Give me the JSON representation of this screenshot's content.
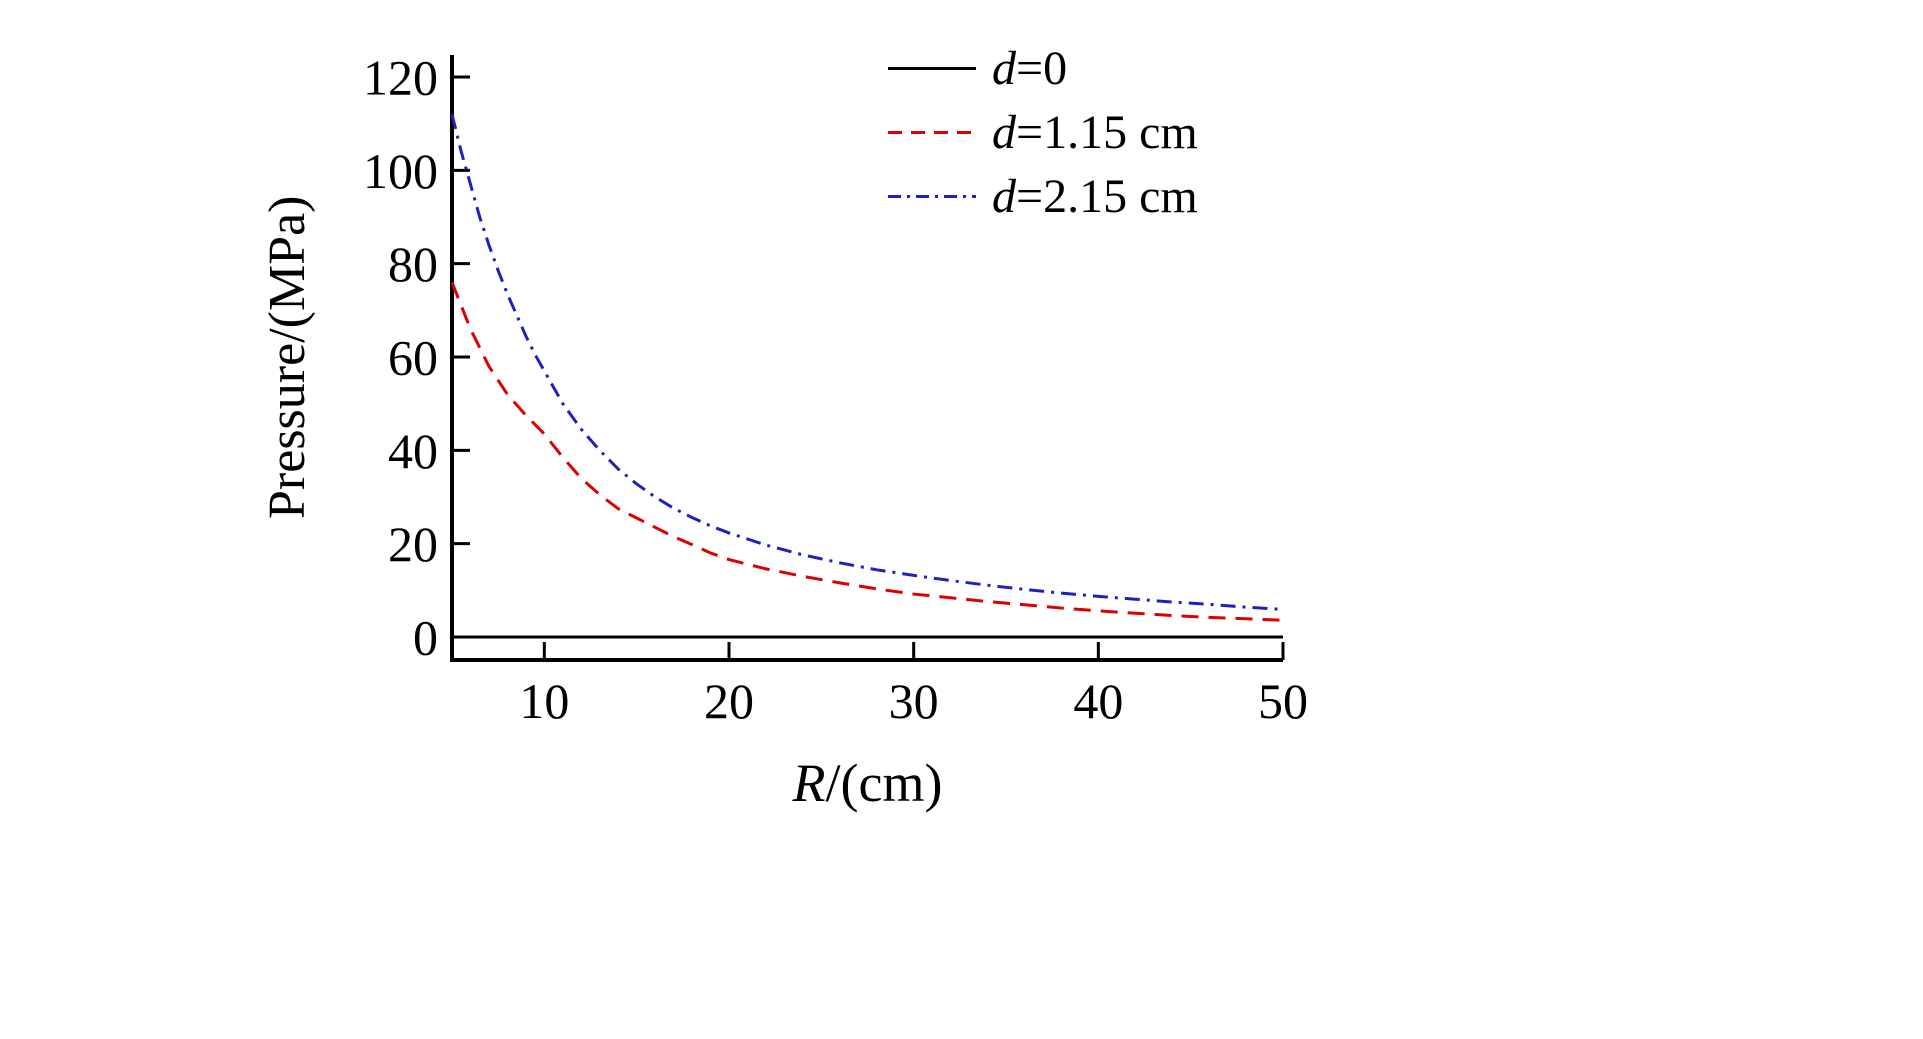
{
  "chart_data": {
    "type": "line",
    "title": "",
    "xlabel_var": "R",
    "xlabel_rest": "/(cm)",
    "ylabel": "Pressure/(MPa)",
    "xlim": [
      5,
      50
    ],
    "ylim": [
      0,
      125
    ],
    "x_ticks": [
      10,
      20,
      30,
      40,
      50
    ],
    "y_ticks": [
      0,
      20,
      40,
      60,
      80,
      100,
      120
    ],
    "grid": false,
    "legend_position": "top-right",
    "series": [
      {
        "name": "d=0",
        "label_var": "d",
        "label_rest": "=0",
        "color": "#000000",
        "style": "solid",
        "x": [
          5,
          50
        ],
        "y": [
          0,
          0
        ]
      },
      {
        "name": "d=1.15 cm",
        "label_var": "d",
        "label_rest": "=1.15 cm",
        "color": "#dd0000",
        "style": "dashed",
        "x": [
          5,
          5.5,
          6,
          6.5,
          7,
          7.5,
          8,
          9,
          10,
          11,
          12,
          13,
          14,
          15,
          16,
          17,
          18,
          19,
          20,
          22,
          24,
          26,
          28,
          30,
          32,
          34,
          36,
          38,
          40,
          42,
          44,
          46,
          48,
          50
        ],
        "y": [
          76,
          71,
          66,
          62,
          58,
          55,
          52,
          47.5,
          43.5,
          38.5,
          34,
          30.5,
          27.5,
          25.5,
          23.5,
          21.5,
          19.8,
          18,
          16.6,
          14.6,
          13,
          11.6,
          10.3,
          9.2,
          8.4,
          7.6,
          6.9,
          6.2,
          5.6,
          5.1,
          4.6,
          4.2,
          3.9,
          3.6
        ]
      },
      {
        "name": "d=2.15 cm",
        "label_var": "d",
        "label_rest": "=2.15 cm",
        "color": "#2020c0",
        "style": "dashdot",
        "x": [
          5,
          5.5,
          6,
          6.5,
          7,
          7.5,
          8,
          8.5,
          9,
          9.5,
          10,
          11,
          12,
          13,
          14,
          15,
          16,
          17,
          18,
          19,
          20,
          22,
          24,
          26,
          28,
          30,
          32,
          34,
          36,
          38,
          40,
          42,
          44,
          46,
          48,
          50
        ],
        "y": [
          112,
          104,
          97,
          90,
          84,
          78.5,
          73.5,
          69,
          64.5,
          60.5,
          57,
          50,
          44.5,
          40,
          36,
          32.8,
          30,
          27.6,
          25.6,
          23.8,
          22.3,
          19.7,
          17.6,
          15.9,
          14.4,
          13.2,
          12.1,
          11.1,
          10.2,
          9.4,
          8.7,
          8.1,
          7.5,
          7,
          6.4,
          5.9
        ]
      }
    ]
  }
}
